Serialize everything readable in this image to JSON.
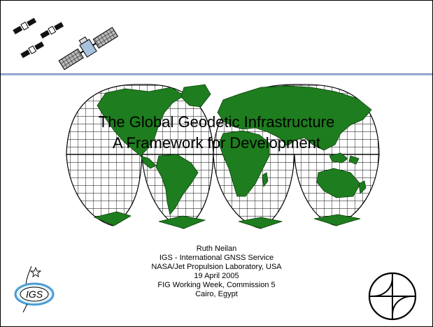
{
  "slide": {
    "title_line1": "The Global Geodetic Infrastructure",
    "title_line2": "A Framework for Development",
    "credits": [
      "Ruth Neilan",
      "IGS - International GNSS Service",
      "NASA/Jet Propulsion Laboratory, USA",
      "19 April 2005",
      "FIG Working Week, Commission 5",
      "Cairo, Egypt"
    ],
    "igs_logo_text": "IGS"
  },
  "colors": {
    "land": "#1e7d1e",
    "grid": "#000000",
    "header_rule": "#7d93c4",
    "igs_ring": "#4a9cd6",
    "igs_fill": "#e6f4fb"
  },
  "icons": [
    "satellite-icon",
    "igs-logo",
    "fig-logo",
    "world-map"
  ]
}
